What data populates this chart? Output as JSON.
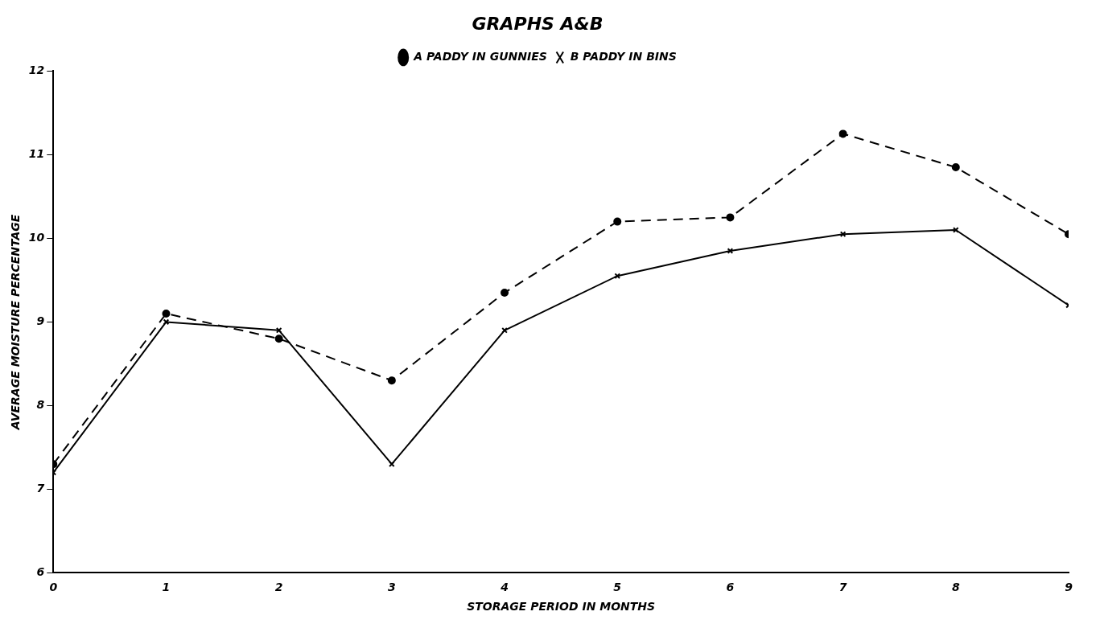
{
  "chart_data": {
    "type": "line",
    "title": "GRAPHS A&B",
    "xlabel": "STORAGE PERIOD IN MONTHS",
    "ylabel": "AVERAGE MOISTURE PERCENTAGE",
    "x": [
      0,
      1,
      2,
      3,
      4,
      5,
      6,
      7,
      8,
      9
    ],
    "xlim": [
      0,
      9
    ],
    "xticks": [
      0,
      1,
      2,
      3,
      4,
      5,
      6,
      7,
      8,
      9
    ],
    "ylim": [
      6,
      12
    ],
    "yticks": [
      6,
      7,
      8,
      9,
      10,
      11,
      12
    ],
    "grid": false,
    "legend": "top",
    "series": [
      {
        "name": "A PADDY IN GUNNIES",
        "color": "#000000",
        "marker": "circle",
        "line_style": "dashed",
        "values": [
          7.3,
          9.1,
          8.8,
          8.3,
          9.35,
          10.2,
          10.25,
          11.25,
          10.85,
          10.05
        ]
      },
      {
        "name": "B PADDY IN BINS",
        "color": "#000000",
        "marker": "cross",
        "line_style": "solid",
        "values": [
          7.2,
          9.0,
          8.9,
          7.3,
          8.9,
          9.55,
          9.85,
          10.05,
          10.1,
          9.2
        ]
      }
    ]
  }
}
